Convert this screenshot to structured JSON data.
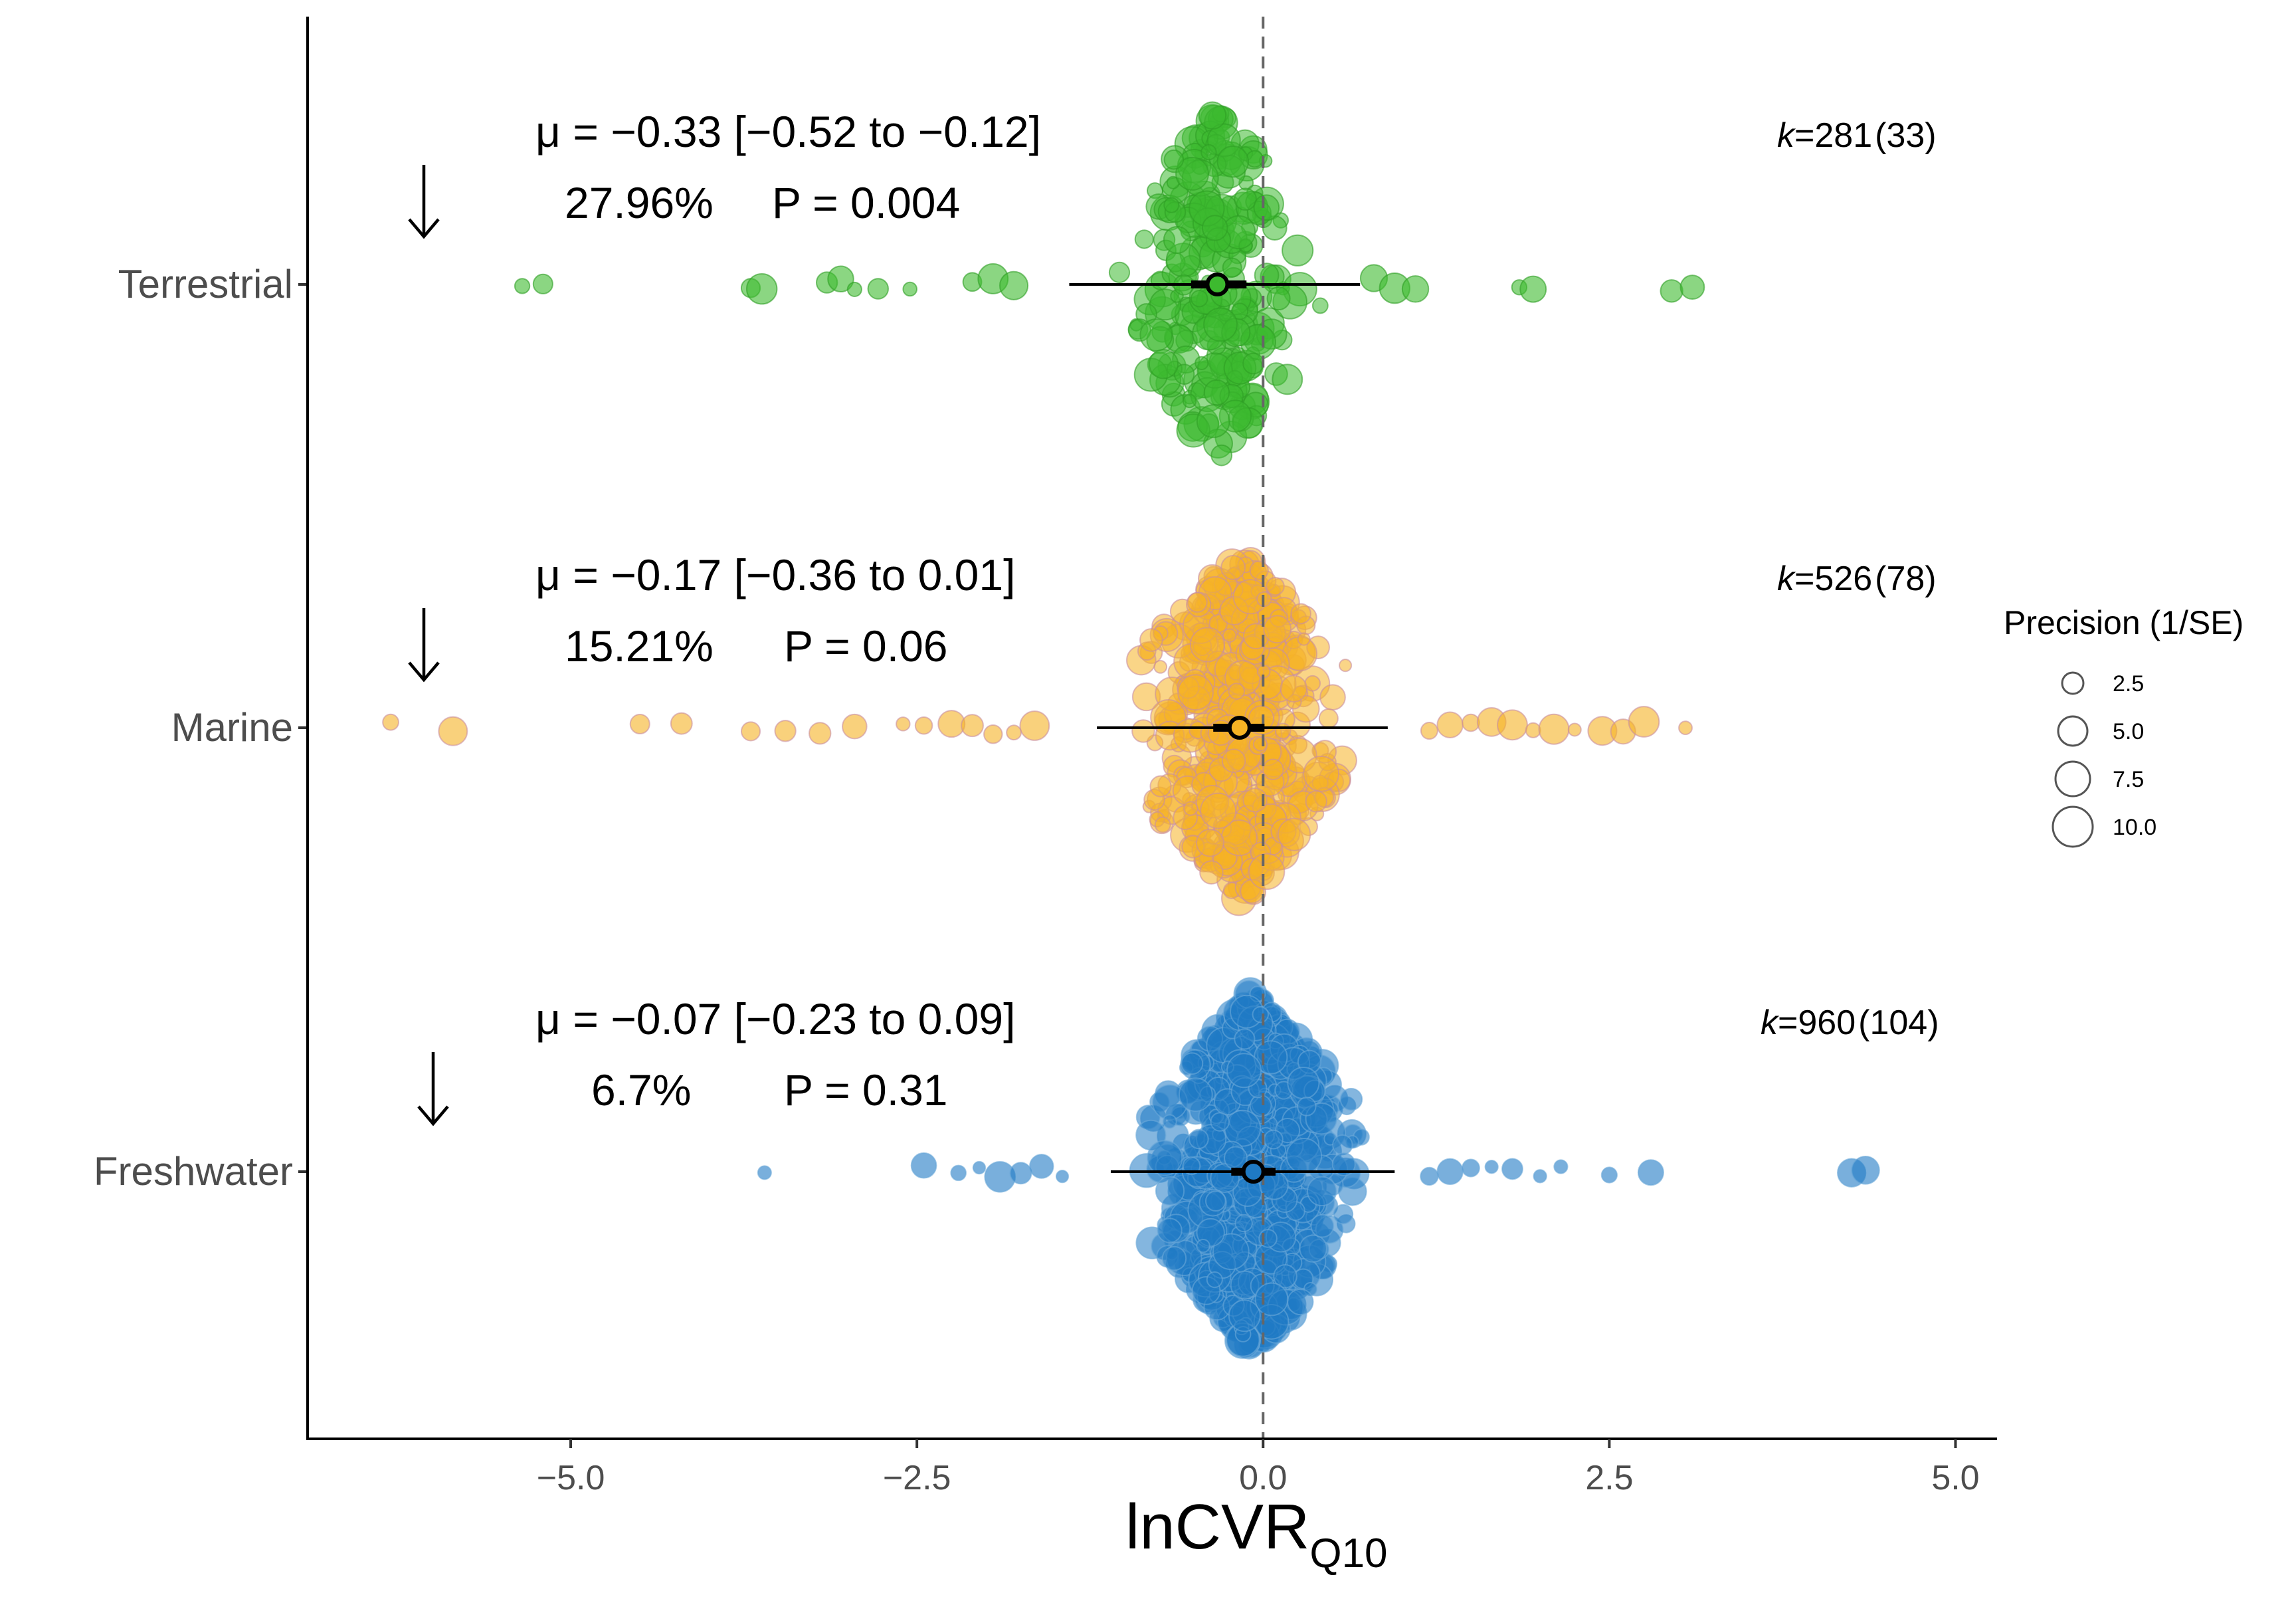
{
  "chart_data": {
    "type": "scatter",
    "subtype": "orchard plot (beeswarm with meta-analytic estimates)",
    "xlabel_main": "lnCVR",
    "xlabel_sub": "Q10",
    "xlim": [
      -6.9,
      5.3
    ],
    "x_ticks": [
      -5.0,
      -2.5,
      0.0,
      2.5,
      5.0
    ],
    "x_tick_labels": [
      "−5.0",
      "−2.5",
      "0.0",
      "2.5",
      "5.0"
    ],
    "reference_line_x": 0,
    "grid": false,
    "legend": {
      "title": "Precision (1/SE)",
      "placement": "right",
      "sizes": [
        2.5,
        5.0,
        7.5,
        10.0
      ],
      "labels": [
        "2.5",
        "5.0",
        "7.5",
        "10.0"
      ]
    },
    "categories": [
      "Terrestrial",
      "Marine",
      "Freshwater"
    ],
    "groups": [
      {
        "name": "Terrestrial",
        "color": "#3dba2f",
        "stroke": "#2f9e25",
        "mean": -0.33,
        "ci": [
          -0.52,
          -0.12
        ],
        "pi": [
          -1.4,
          0.7
        ],
        "k": 281,
        "studies": 33,
        "mu_text": "μ = −0.33 [−0.52 to −0.12]",
        "het_text": "27.96%",
        "p_text": "P = 0.004",
        "k_label": "k",
        "k_text": "=281",
        "studies_text": "(33)",
        "outliers": [
          -5.35,
          -5.2,
          -3.7,
          -3.62,
          -3.15,
          -3.05,
          -2.95,
          -2.78,
          -2.55,
          -2.1,
          -1.95,
          -1.8,
          0.8,
          0.95,
          1.1,
          1.85,
          1.95,
          2.95,
          3.1
        ]
      },
      {
        "name": "Marine",
        "color": "#f5b324",
        "stroke": "#c98fa0",
        "mean": -0.17,
        "ci": [
          -0.36,
          0.01
        ],
        "pi": [
          -1.2,
          0.9
        ],
        "k": 526,
        "studies": 78,
        "mu_text": "μ = −0.17 [−0.36 to 0.01]",
        "het_text": "15.21%",
        "p_text": "P = 0.06",
        "k_label": "k",
        "k_text": "=526",
        "studies_text": "(78)",
        "outliers": [
          -6.3,
          -5.85,
          -4.5,
          -4.2,
          -3.7,
          -3.45,
          -3.2,
          -2.95,
          -2.6,
          -2.45,
          -2.25,
          -2.1,
          -1.95,
          -1.8,
          -1.65,
          1.2,
          1.35,
          1.5,
          1.65,
          1.8,
          1.95,
          2.1,
          2.25,
          2.45,
          2.6,
          2.75,
          3.05
        ]
      },
      {
        "name": "Freshwater",
        "color": "#1f7ac4",
        "stroke": "#6aa8d8",
        "mean": -0.07,
        "ci": [
          -0.23,
          0.09
        ],
        "pi": [
          -1.1,
          0.95
        ],
        "k": 960,
        "studies": 104,
        "mu_text": "μ = −0.07 [−0.23 to 0.09]",
        "het_text": "6.7%",
        "p_text": "P = 0.31",
        "k_label": "k",
        "k_text": "=960",
        "studies_text": "(104)",
        "outliers": [
          -3.6,
          -2.45,
          -2.2,
          -2.05,
          -1.9,
          -1.75,
          -1.6,
          -1.45,
          1.2,
          1.35,
          1.5,
          1.65,
          1.8,
          2.0,
          2.15,
          2.5,
          2.8,
          4.25,
          4.35
        ]
      }
    ]
  }
}
